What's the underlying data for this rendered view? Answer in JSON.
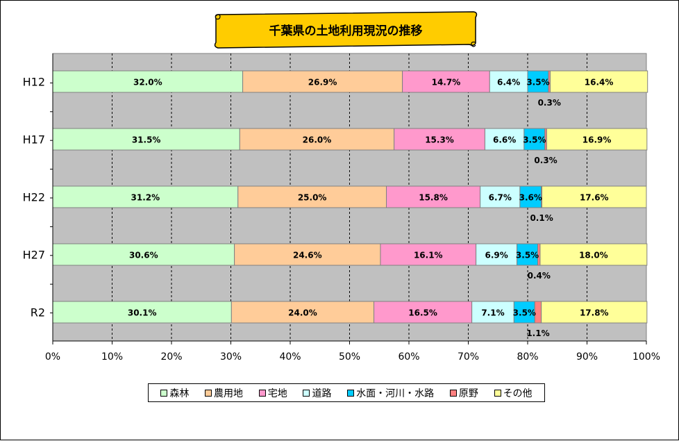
{
  "chart_data": {
    "type": "bar",
    "orientation": "horizontal",
    "stacked": "percent",
    "title": "千葉県の土地利用現況の推移",
    "categories": [
      "H12",
      "H17",
      "H22",
      "H27",
      "R2"
    ],
    "x_ticks": [
      "0%",
      "10%",
      "20%",
      "30%",
      "40%",
      "50%",
      "60%",
      "70%",
      "80%",
      "90%",
      "100%"
    ],
    "xlim": [
      0,
      100
    ],
    "grid": "vertical dashed",
    "legend_position": "bottom",
    "series": [
      {
        "name": "森林",
        "color": "#CCFFCC",
        "values": [
          32.0,
          31.5,
          31.2,
          30.6,
          30.1
        ],
        "labels": [
          "32.0%",
          "31.5%",
          "31.2%",
          "30.6%",
          "30.1%"
        ]
      },
      {
        "name": "農用地",
        "color": "#FFCC99",
        "values": [
          26.9,
          26.0,
          25.0,
          24.6,
          24.0
        ],
        "labels": [
          "26.9%",
          "26.0%",
          "25.0%",
          "24.6%",
          "24.0%"
        ]
      },
      {
        "name": "宅地",
        "color": "#FF99CC",
        "values": [
          14.7,
          15.3,
          15.8,
          16.1,
          16.5
        ],
        "labels": [
          "14.7%",
          "15.3%",
          "15.8%",
          "16.1%",
          "16.5%"
        ]
      },
      {
        "name": "道路",
        "color": "#CCFFFF",
        "values": [
          6.4,
          6.6,
          6.7,
          6.9,
          7.1
        ],
        "labels": [
          "6.4%",
          "6.6%",
          "6.7%",
          "6.9%",
          "7.1%"
        ]
      },
      {
        "name": "水面・河川・水路",
        "color": "#00CCFF",
        "values": [
          3.5,
          3.5,
          3.6,
          3.5,
          3.5
        ],
        "labels": [
          "3.5%",
          "3.5%",
          "3.6%",
          "3.5%",
          "3.5%"
        ]
      },
      {
        "name": "原野",
        "color": "#FF8080",
        "values": [
          0.3,
          0.3,
          0.1,
          0.4,
          1.1
        ],
        "labels": [
          "0.3%",
          "0.3%",
          "0.1%",
          "0.4%",
          "1.1%"
        ]
      },
      {
        "name": "その他",
        "color": "#FFFF99",
        "values": [
          16.4,
          16.9,
          17.6,
          18.0,
          17.8
        ],
        "labels": [
          "16.4%",
          "16.9%",
          "17.6%",
          "18.0%",
          "17.8%"
        ]
      }
    ]
  },
  "colors": {
    "plot_background": "#C0C0C0",
    "title_scroll": "#FFCC00"
  }
}
